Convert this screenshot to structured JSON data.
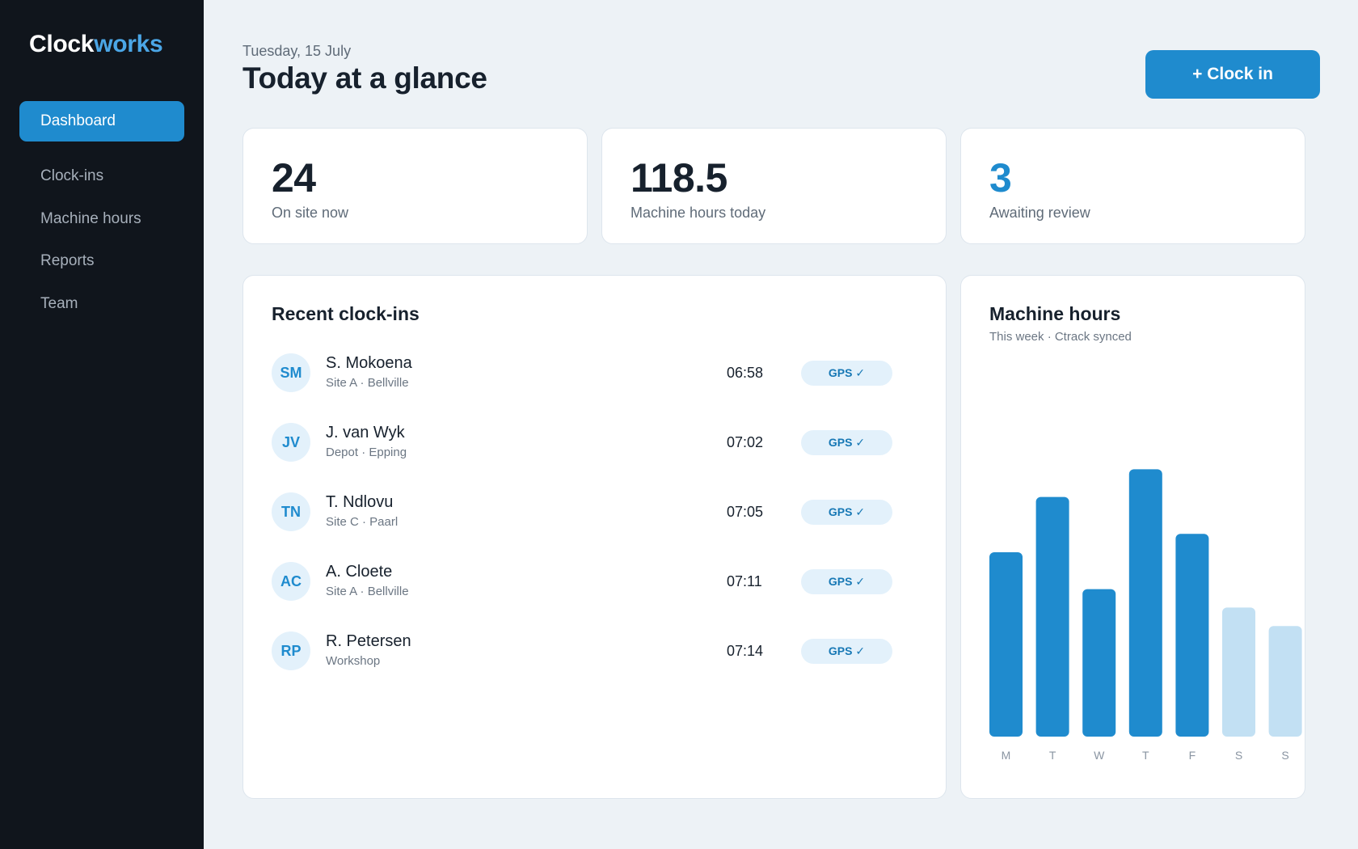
{
  "app": {
    "logo_part1": "Clock",
    "logo_part2": "works"
  },
  "sidebar": {
    "items": [
      {
        "label": "Dashboard",
        "active": true
      },
      {
        "label": "Clock-ins",
        "active": false
      },
      {
        "label": "Machine hours",
        "active": false
      },
      {
        "label": "Reports",
        "active": false
      },
      {
        "label": "Team",
        "active": false
      }
    ]
  },
  "header": {
    "date": "Tuesday, 15 July",
    "title": "Today at a glance",
    "clock_in_label": "+ Clock in"
  },
  "stats": [
    {
      "value": "24",
      "label": "On site now"
    },
    {
      "value": "118.5",
      "label": "Machine hours today"
    },
    {
      "value": "3",
      "label": "Awaiting review"
    }
  ],
  "recent": {
    "title": "Recent clock-ins",
    "rows": [
      {
        "initials": "SM",
        "name": "S. Mokoena",
        "site": "Site A · Bellville",
        "time": "06:58",
        "badge": "GPS ✓"
      },
      {
        "initials": "JV",
        "name": "J. van Wyk",
        "site": "Depot · Epping",
        "time": "07:02",
        "badge": "GPS ✓"
      },
      {
        "initials": "TN",
        "name": "T. Ndlovu",
        "site": "Site C · Paarl",
        "time": "07:05",
        "badge": "GPS ✓"
      },
      {
        "initials": "AC",
        "name": "A. Cloete",
        "site": "Site A · Bellville",
        "time": "07:11",
        "badge": "GPS ✓"
      },
      {
        "initials": "RP",
        "name": "R. Petersen",
        "site": "Workshop",
        "time": "07:14",
        "badge": "GPS ✓"
      }
    ]
  },
  "machine": {
    "title": "Machine hours",
    "subtitle": "This week · Ctrack synced"
  },
  "colors": {
    "accent": "#1f8bce",
    "bar_future": "#c2e0f3"
  },
  "chart_data": {
    "type": "bar",
    "categories": [
      "M",
      "T",
      "W",
      "T",
      "F",
      "S",
      "S"
    ],
    "values": [
      60,
      78,
      48,
      87,
      66,
      42,
      36
    ],
    "highlighted": [
      true,
      true,
      true,
      true,
      true,
      false,
      false
    ],
    "ylim": [
      0,
      100
    ],
    "title": "Machine hours",
    "subtitle": "This week · Ctrack synced"
  }
}
